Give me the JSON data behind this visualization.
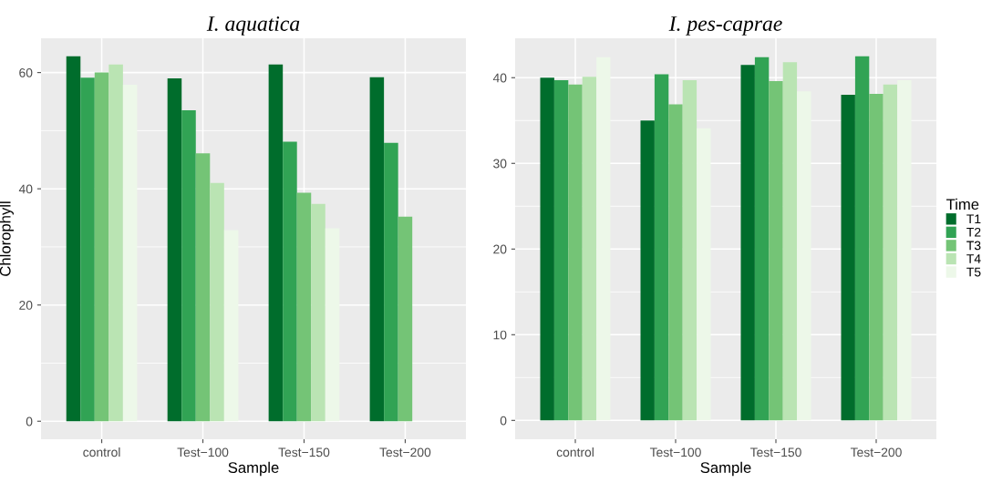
{
  "chart_data": [
    {
      "type": "bar",
      "title": "I. aquatica",
      "xlabel": "Sample",
      "ylabel": "Chlorophyll",
      "categories": [
        "control",
        "Test−100",
        "Test−150",
        "Test−200"
      ],
      "ylim": [
        -3.1,
        65.9
      ],
      "yticks": [
        0,
        20,
        40,
        60
      ],
      "grid": true,
      "legend": false,
      "series": [
        {
          "color": "#006d2c",
          "values": [
            62.8,
            59.0,
            61.4,
            59.2
          ]
        },
        {
          "color": "#31a354",
          "values": [
            59.1,
            53.5,
            48.1,
            47.9
          ]
        },
        {
          "color": "#74c476",
          "values": [
            60.0,
            46.1,
            39.3,
            35.2
          ]
        },
        {
          "color": "#bae4b3",
          "values": [
            61.4,
            41.0,
            37.4,
            null
          ]
        },
        {
          "color": "#edf8e9",
          "values": [
            57.9,
            32.9,
            33.2,
            null
          ]
        }
      ]
    },
    {
      "type": "bar",
      "title": "I. pes-caprae",
      "xlabel": "Sample",
      "legend_title": "Time",
      "categories": [
        "control",
        "Test−100",
        "Test−150",
        "Test−200"
      ],
      "ylim": [
        -2.2,
        44.6
      ],
      "yticks": [
        0,
        10,
        20,
        30,
        40
      ],
      "grid": true,
      "legend": "right",
      "series": [
        {
          "name": "T1",
          "color": "#006d2c",
          "values": [
            40.0,
            35.0,
            41.5,
            38.0
          ]
        },
        {
          "name": "T2",
          "color": "#31a354",
          "values": [
            39.7,
            40.4,
            42.4,
            42.5
          ]
        },
        {
          "name": "T3",
          "color": "#74c476",
          "values": [
            39.2,
            36.9,
            39.6,
            38.1
          ]
        },
        {
          "name": "T4",
          "color": "#bae4b3",
          "values": [
            40.1,
            39.7,
            41.8,
            39.2
          ]
        },
        {
          "name": "T5",
          "color": "#edf8e9",
          "values": [
            42.4,
            34.1,
            38.4,
            39.7
          ]
        }
      ]
    }
  ]
}
